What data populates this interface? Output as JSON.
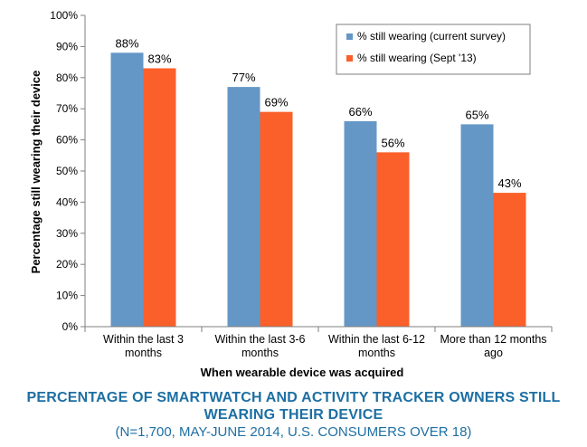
{
  "chart_data": {
    "type": "bar",
    "categories": [
      [
        "Within the last 3",
        "months"
      ],
      [
        "Within the last 3-6",
        "months"
      ],
      [
        "Within the last 6-12",
        "months"
      ],
      [
        "More than 12 months",
        "ago"
      ]
    ],
    "series": [
      {
        "name": "% still wearing (current survey)",
        "values": [
          88,
          77,
          66,
          65
        ],
        "labels": [
          "88%",
          "77%",
          "66%",
          "65%"
        ],
        "color": "#6497c6"
      },
      {
        "name": "% still wearing (Sept '13)",
        "values": [
          83,
          69,
          56,
          43
        ],
        "labels": [
          "83%",
          "69%",
          "56%",
          "43%"
        ],
        "color": "#fb5f2a"
      }
    ],
    "xlabel": "When wearable device was acquired",
    "ylabel": "Percentage still wearing their device",
    "ylim": [
      0,
      100
    ],
    "yticks": [
      "0%",
      "10%",
      "20%",
      "30%",
      "40%",
      "50%",
      "60%",
      "70%",
      "80%",
      "90%",
      "100%"
    ],
    "grid": false,
    "legend_position": "top-right"
  },
  "caption": {
    "title_line1": "PERCENTAGE OF SMARTWATCH AND ACTIVITY TRACKER OWNERS STILL",
    "title_line2": "WEARING THEIR DEVICE",
    "subtitle": "(N=1,700, MAY-JUNE 2014, U.S. CONSUMERS OVER 18)"
  }
}
